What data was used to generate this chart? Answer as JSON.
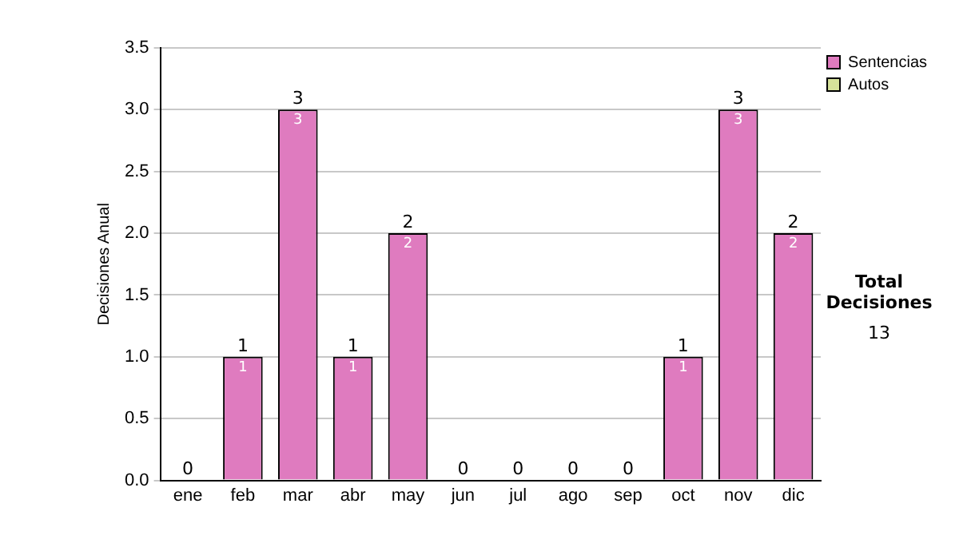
{
  "chart_data": {
    "type": "bar",
    "stacked": true,
    "ylabel": "Decisiones Anual",
    "categories": [
      "ene",
      "feb",
      "mar",
      "abr",
      "may",
      "jun",
      "jul",
      "ago",
      "sep",
      "oct",
      "nov",
      "dic"
    ],
    "series": [
      {
        "name": "Sentencias",
        "color": "#df7bbf",
        "values": [
          0,
          1,
          3,
          1,
          2,
          0,
          0,
          0,
          0,
          1,
          3,
          2
        ],
        "value_labels": [
          null,
          "1",
          "3",
          "1",
          "2",
          null,
          null,
          null,
          null,
          "1",
          "3",
          "2"
        ]
      },
      {
        "name": "Autos",
        "color": "#d6e29a",
        "values": [
          0,
          0,
          0,
          0,
          0,
          0,
          0,
          0,
          0,
          0,
          0,
          0
        ]
      }
    ],
    "totals": [
      "0",
      "1",
      "3",
      "1",
      "2",
      "0",
      "0",
      "0",
      "0",
      "1",
      "3",
      "2"
    ],
    "ylim": [
      0,
      3.5
    ],
    "yticks": [
      {
        "value": 0,
        "label": "0.0"
      },
      {
        "value": 0.5,
        "label": "0.5"
      },
      {
        "value": 1,
        "label": "1.0"
      },
      {
        "value": 1.5,
        "label": "1.5"
      },
      {
        "value": 2,
        "label": "2.0"
      },
      {
        "value": 2.5,
        "label": "2.5"
      },
      {
        "value": 3,
        "label": "3.0"
      },
      {
        "value": 3.5,
        "label": "3.5"
      }
    ],
    "grid": "y",
    "legend": "right",
    "annotations": [
      "Total Decisiones",
      "13"
    ]
  }
}
